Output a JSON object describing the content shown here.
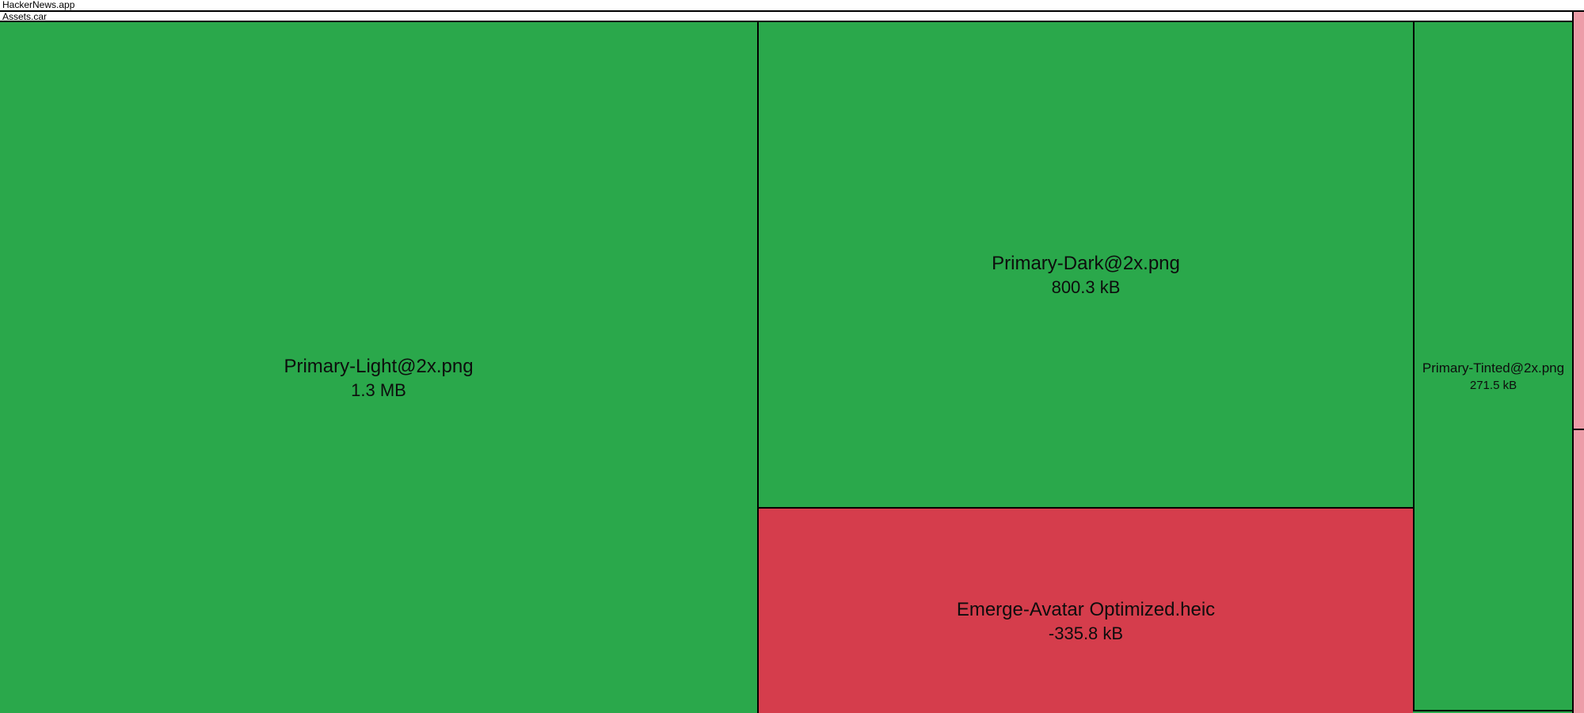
{
  "breadcrumbs": {
    "root_label": "HackerNews.app",
    "container_label": "Assets.car"
  },
  "cells": [
    {
      "name": "Primary-Light@2x.png",
      "size": "1.3 MB"
    },
    {
      "name": "Primary-Dark@2x.png",
      "size": "800.3 kB"
    },
    {
      "name": "Emerge-Avatar Optimized.heic",
      "size": "-335.8 kB"
    },
    {
      "name": "Primary-Tinted@2x.png",
      "size": "271.5 kB"
    }
  ],
  "colors": {
    "increase": "#2aa84b",
    "decrease": "#d53d4c",
    "small_cell": "#ec9da8",
    "border": "#000000",
    "header_bg": "#ffffff",
    "text": "#0d0d0d"
  },
  "chart_data": {
    "type": "treemap",
    "legend_position": "none",
    "color_meaning": {
      "green": "size increase",
      "red": "size decrease"
    },
    "hierarchy": {
      "name": "HackerNews.app",
      "children": [
        {
          "name": "Assets.car",
          "children": [
            {
              "name": "Primary-Light@2x.png",
              "size_label": "1.3 MB",
              "value_kb": 1300,
              "change": "increase"
            },
            {
              "name": "Primary-Dark@2x.png",
              "size_label": "800.3 kB",
              "value_kb": 800.3,
              "change": "increase"
            },
            {
              "name": "Emerge-Avatar Optimized.heic",
              "size_label": "-335.8 kB",
              "value_kb": -335.8,
              "change": "decrease"
            },
            {
              "name": "Primary-Tinted@2x.png",
              "size_label": "271.5 kB",
              "value_kb": 271.5,
              "change": "increase"
            }
          ]
        },
        {
          "name": "",
          "unlabeled_small_cells": 2
        }
      ]
    }
  }
}
